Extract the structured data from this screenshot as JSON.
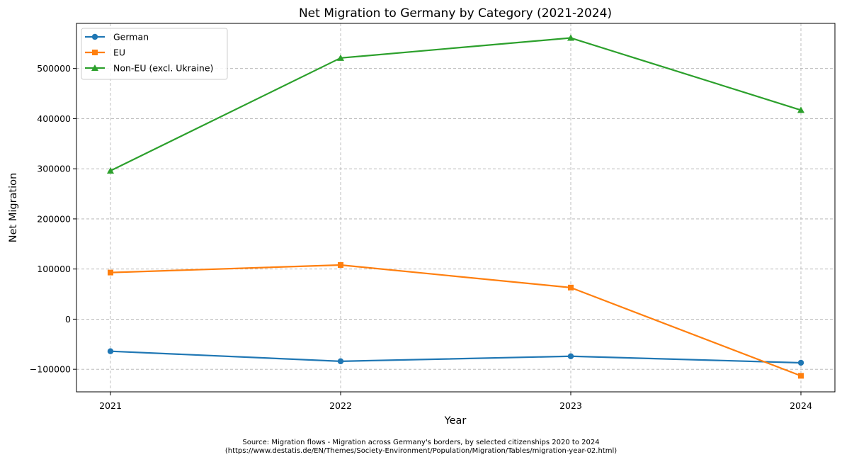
{
  "chart_data": {
    "type": "line",
    "title": "Net Migration to Germany by Category (2021-2024)",
    "xlabel": "Year",
    "ylabel": "Net Migration",
    "x": [
      "2021",
      "2022",
      "2023",
      "2024"
    ],
    "ylim": [
      -145000,
      590000
    ],
    "yticks": [
      -100000,
      0,
      100000,
      200000,
      300000,
      400000,
      500000
    ],
    "ytick_labels": [
      "−100000",
      "0",
      "100000",
      "200000",
      "300000",
      "400000",
      "500000"
    ],
    "grid": true,
    "legend_position": "top-left",
    "series": [
      {
        "name": "German",
        "color": "#1f77b4",
        "marker": "circle",
        "values": [
          -64000,
          -84000,
          -74000,
          -87000
        ]
      },
      {
        "name": "EU",
        "color": "#ff7f0e",
        "marker": "square",
        "values": [
          93000,
          108000,
          63000,
          -113000
        ]
      },
      {
        "name": "Non-EU (excl. Ukraine)",
        "color": "#2ca02c",
        "marker": "triangle",
        "values": [
          296000,
          521000,
          561000,
          417000
        ]
      }
    ]
  },
  "source": {
    "line1": "Source: Migration flows - Migration across Germany's borders, by selected citizenships 2020 to 2024",
    "line2": "(https://www.destatis.de/EN/Themes/Society-Environment/Population/Migration/Tables/migration-year-02.html)"
  }
}
